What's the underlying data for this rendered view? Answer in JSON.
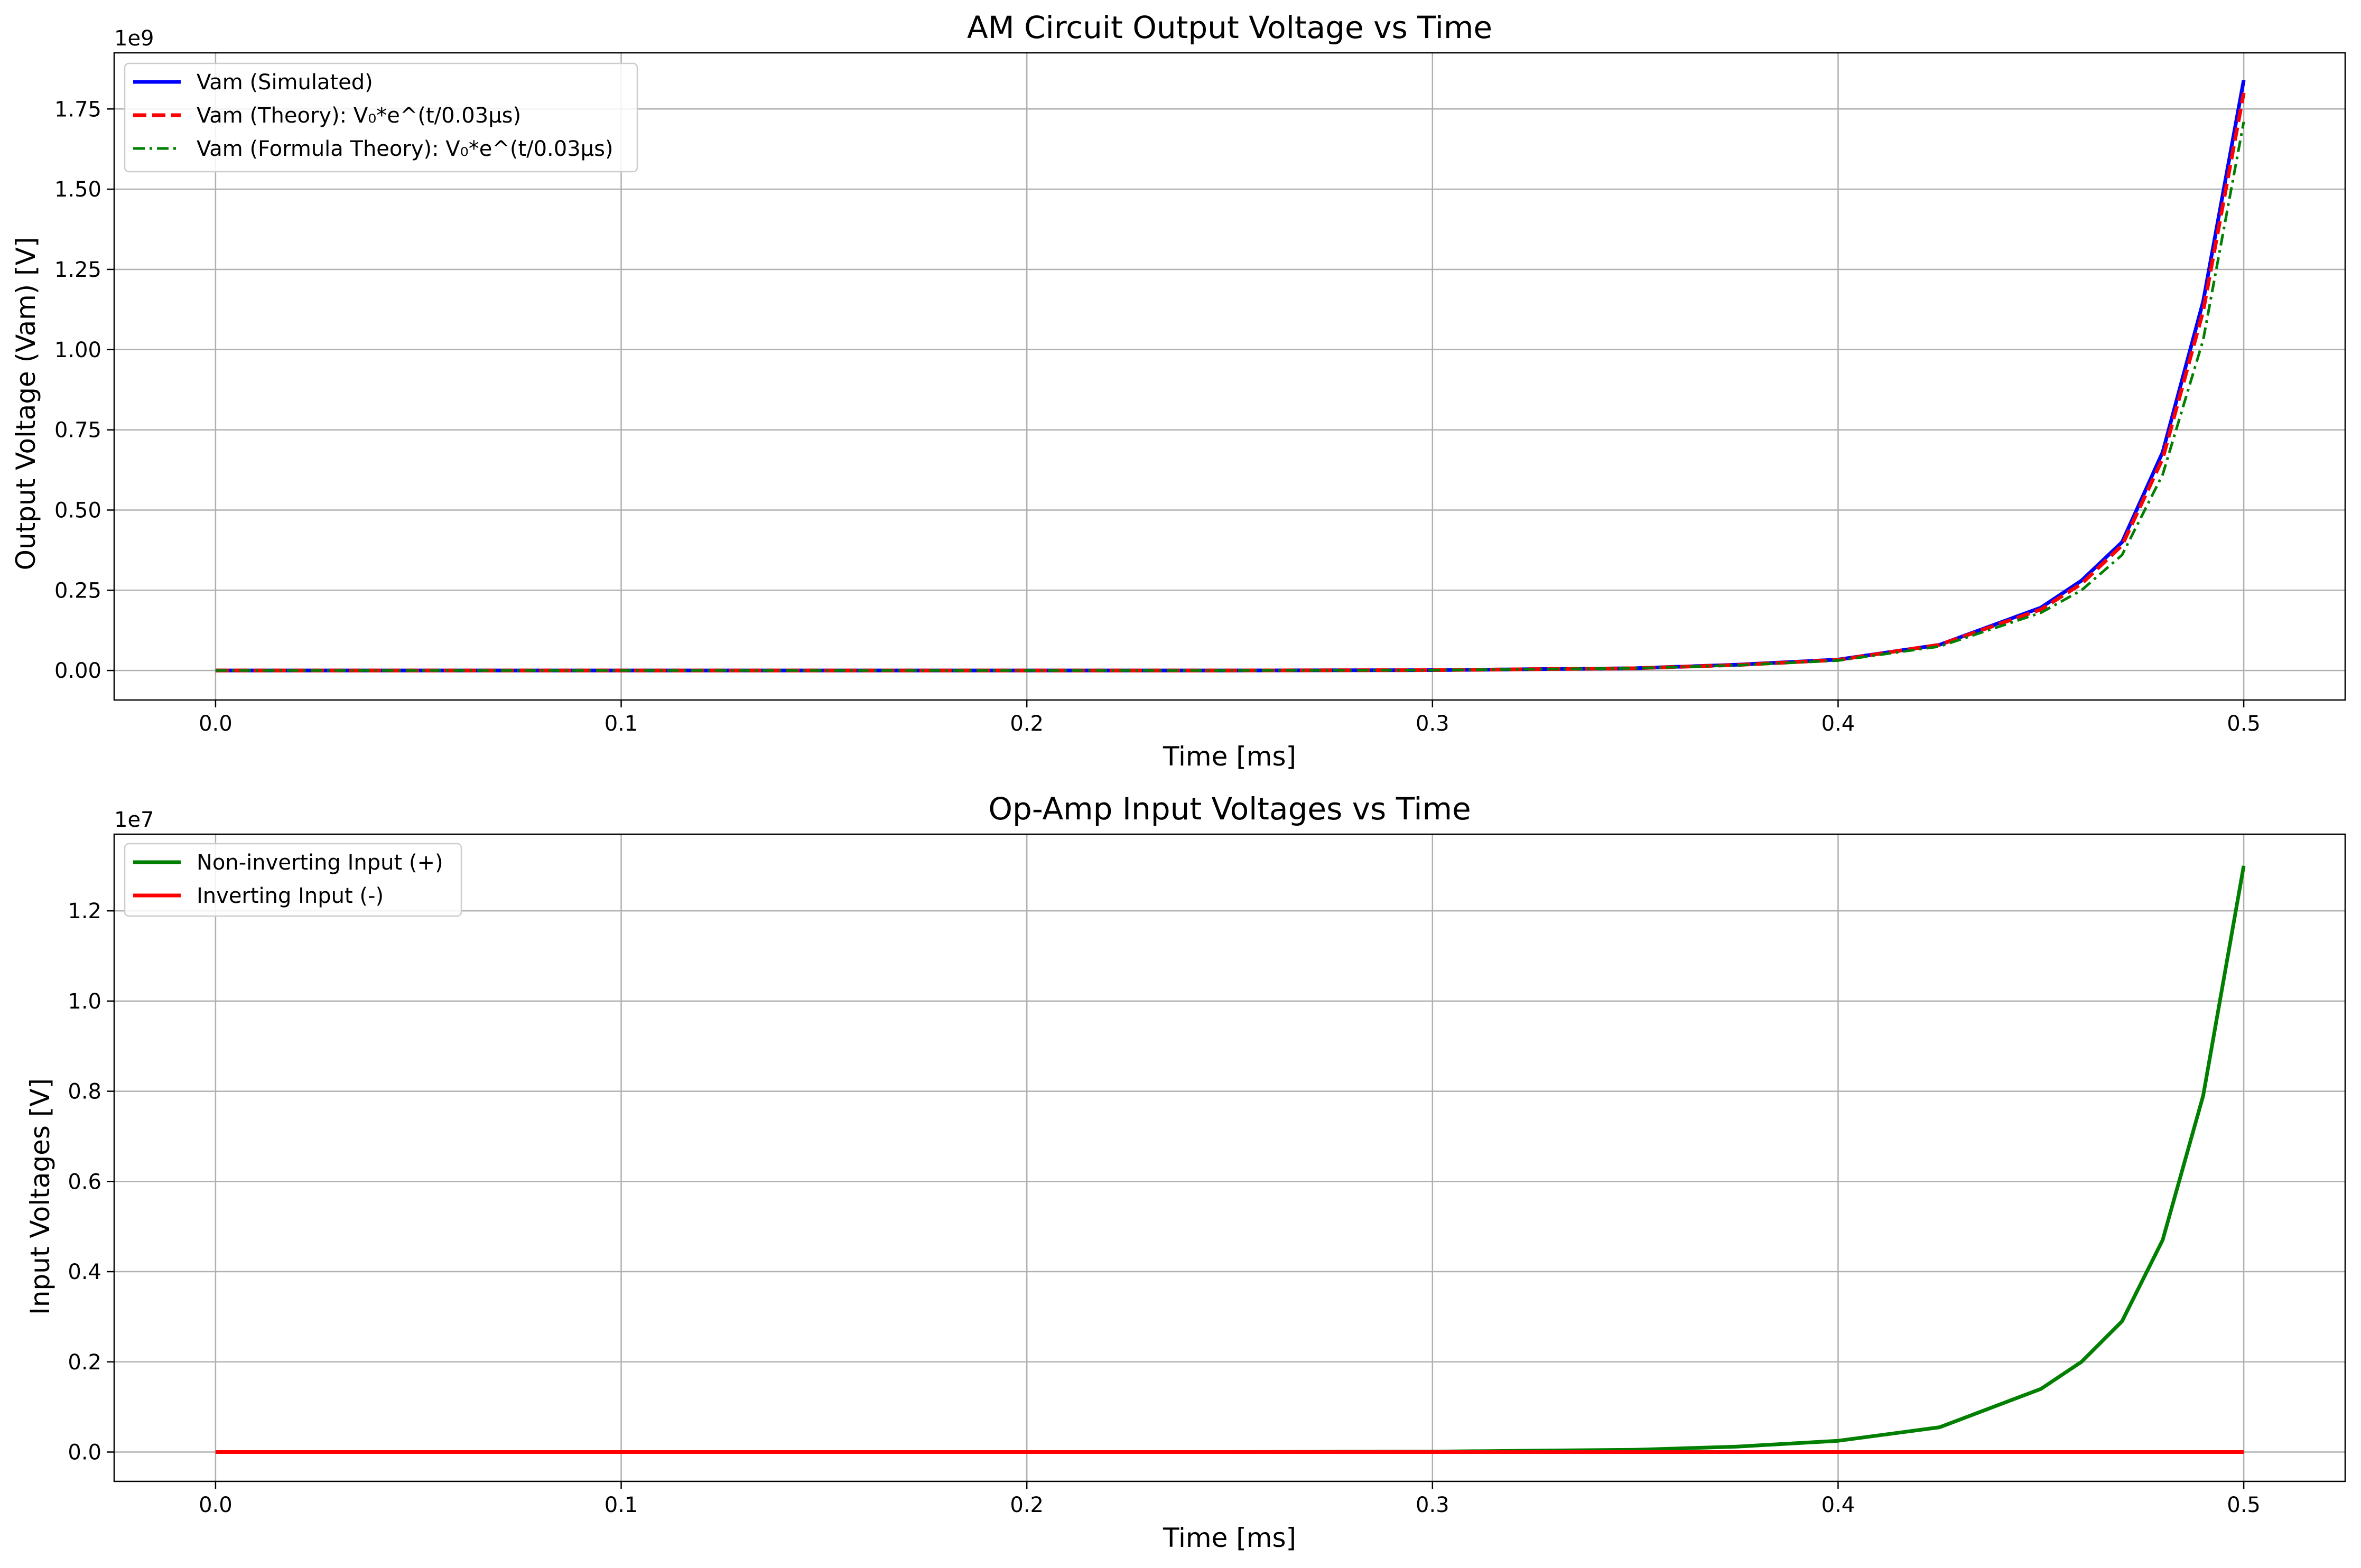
{
  "chart_data": [
    {
      "type": "line",
      "title": "AM Circuit Output Voltage vs Time",
      "xlabel": "Time [ms]",
      "ylabel": "Output Voltage (Vam) [V]",
      "y_offset_label": "1e9",
      "y_multiplier": 1000000000,
      "xlim": [
        -0.025,
        0.525
      ],
      "ylim": [
        -0.092,
        1.925
      ],
      "xticks": [
        0.0,
        0.1,
        0.2,
        0.3,
        0.4,
        0.5
      ],
      "xtick_labels": [
        "0.0",
        "0.1",
        "0.2",
        "0.3",
        "0.4",
        "0.5"
      ],
      "yticks": [
        0.0,
        0.25,
        0.5,
        0.75,
        1.0,
        1.25,
        1.5,
        1.75
      ],
      "ytick_labels": [
        "0.00",
        "0.25",
        "0.50",
        "0.75",
        "1.00",
        "1.25",
        "1.50",
        "1.75"
      ],
      "grid": true,
      "legend_position": "upper left",
      "x": [
        0.0,
        0.05,
        0.1,
        0.15,
        0.2,
        0.25,
        0.3,
        0.35,
        0.375,
        0.4,
        0.425,
        0.45,
        0.46,
        0.47,
        0.48,
        0.49,
        0.5
      ],
      "series": [
        {
          "name": "Vam (Simulated)",
          "color": "#0000ff",
          "style": "solid",
          "values": [
            0.0,
            0.0,
            0.0,
            0.0,
            0.0,
            0.0,
            0.001,
            0.007,
            0.018,
            0.034,
            0.08,
            0.196,
            0.28,
            0.4,
            0.68,
            1.15,
            1.84
          ]
        },
        {
          "name": "Vam (Theory): V₀*e^(t/0.03μs)",
          "color": "#ff0000",
          "style": "dashed",
          "values": [
            0.0,
            0.0,
            0.0,
            0.0,
            0.0,
            0.0,
            0.001,
            0.007,
            0.017,
            0.033,
            0.08,
            0.19,
            0.27,
            0.39,
            0.66,
            1.12,
            1.8
          ]
        },
        {
          "name": "Vam (Formula Theory): V₀*e^(t/0.03μs)",
          "color": "#007f00",
          "style": "dashdot",
          "values": [
            0.0,
            0.0,
            0.0,
            0.0,
            0.0,
            0.0,
            0.001,
            0.007,
            0.016,
            0.031,
            0.075,
            0.18,
            0.25,
            0.36,
            0.61,
            1.03,
            1.71
          ]
        }
      ]
    },
    {
      "type": "line",
      "title": "Op-Amp Input Voltages vs Time",
      "xlabel": "Time [ms]",
      "ylabel": "Input Voltages [V]",
      "y_offset_label": "1e7",
      "y_multiplier": 10000000,
      "xlim": [
        -0.025,
        0.525
      ],
      "ylim": [
        -0.065,
        1.37
      ],
      "xticks": [
        0.0,
        0.1,
        0.2,
        0.3,
        0.4,
        0.5
      ],
      "xtick_labels": [
        "0.0",
        "0.1",
        "0.2",
        "0.3",
        "0.4",
        "0.5"
      ],
      "yticks": [
        0.0,
        0.2,
        0.4,
        0.6,
        0.8,
        1.0,
        1.2
      ],
      "ytick_labels": [
        "0.0",
        "0.2",
        "0.4",
        "0.6",
        "0.8",
        "1.0",
        "1.2"
      ],
      "grid": true,
      "legend_position": "upper left",
      "x": [
        0.0,
        0.05,
        0.1,
        0.15,
        0.2,
        0.25,
        0.3,
        0.35,
        0.375,
        0.4,
        0.425,
        0.45,
        0.46,
        0.47,
        0.48,
        0.49,
        0.5
      ],
      "series": [
        {
          "name": "Non-inverting Input (+)",
          "color": "#007f00",
          "style": "solid",
          "values": [
            0.0,
            0.0,
            0.0,
            0.0,
            0.0,
            0.0,
            0.001,
            0.005,
            0.012,
            0.025,
            0.055,
            0.14,
            0.2,
            0.29,
            0.47,
            0.79,
            1.3
          ]
        },
        {
          "name": "Inverting Input (-)",
          "color": "#ff0000",
          "style": "solid",
          "values": [
            0.0,
            0.0,
            0.0,
            0.0,
            0.0,
            0.0,
            0.0,
            0.0,
            0.0,
            0.0,
            0.0,
            0.0,
            0.0,
            0.0,
            0.0,
            0.0,
            0.0
          ]
        }
      ]
    }
  ]
}
